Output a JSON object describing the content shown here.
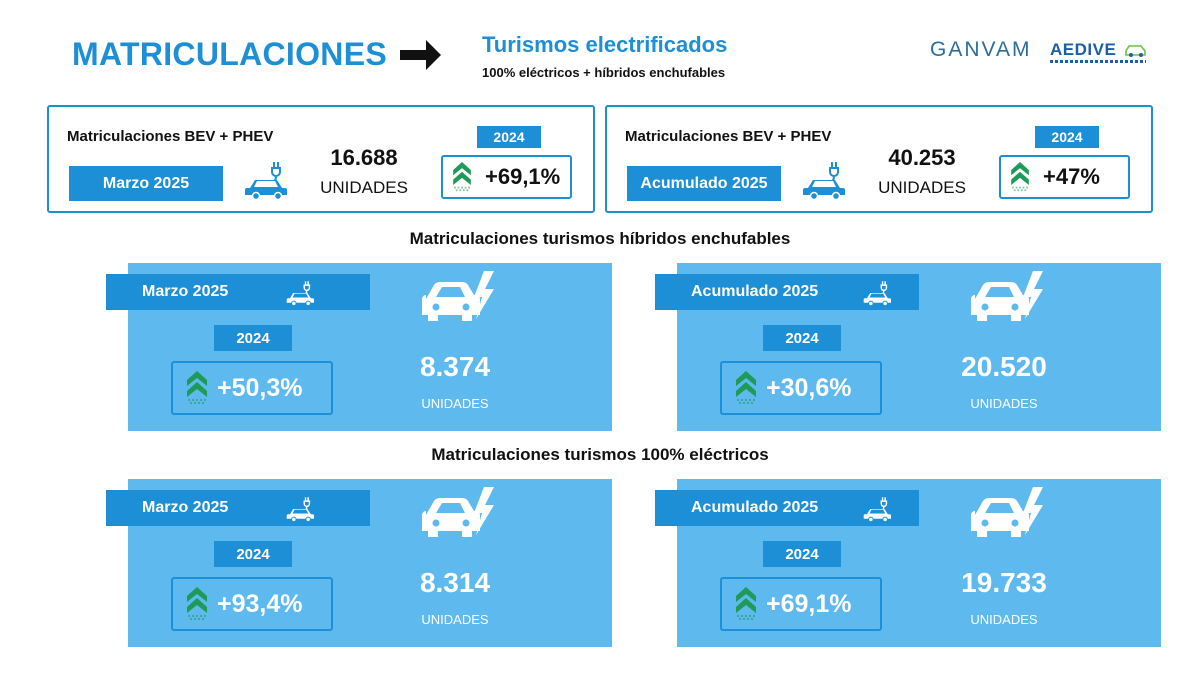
{
  "header": {
    "title": "MATRICULACIONES",
    "subtitle": "Turismos electrificados",
    "caption": "100% eléctricos + híbridos enchufables",
    "logo_left": "GANVAM",
    "logo_right": "AEDIVE"
  },
  "colors": {
    "accent": "#1d8fd6",
    "panel": "#5db9ee",
    "arrow_green": "#1f9a57"
  },
  "summary": [
    {
      "label": "Matriculaciones BEV + PHEV",
      "period": "Marzo 2025",
      "value": "16.688",
      "unit": "UNIDADES",
      "year": "2024",
      "change": "+69,1%"
    },
    {
      "label": "Matriculaciones BEV + PHEV",
      "period": "Acumulado 2025",
      "value": "40.253",
      "unit": "UNIDADES",
      "year": "2024",
      "change": "+47%"
    }
  ],
  "phev": {
    "heading": "Matriculaciones turismos híbridos enchufables",
    "panels": [
      {
        "period": "Marzo 2025",
        "year": "2024",
        "change": "+50,3%",
        "value": "8.374",
        "unit": "UNIDADES"
      },
      {
        "period": "Acumulado 2025",
        "year": "2024",
        "change": "+30,6%",
        "value": "20.520",
        "unit": "UNIDADES"
      }
    ]
  },
  "bev": {
    "heading": "Matriculaciones turismos 100% eléctricos",
    "panels": [
      {
        "period": "Marzo 2025",
        "year": "2024",
        "change": "+93,4%",
        "value": "8.314",
        "unit": "UNIDADES"
      },
      {
        "period": "Acumulado 2025",
        "year": "2024",
        "change": "+69,1%",
        "value": "19.733",
        "unit": "UNIDADES"
      }
    ]
  },
  "icons": [
    "arrow-right-icon",
    "ev-car-icon",
    "electric-car-bolt-icon",
    "growth-chevrons-icon"
  ]
}
